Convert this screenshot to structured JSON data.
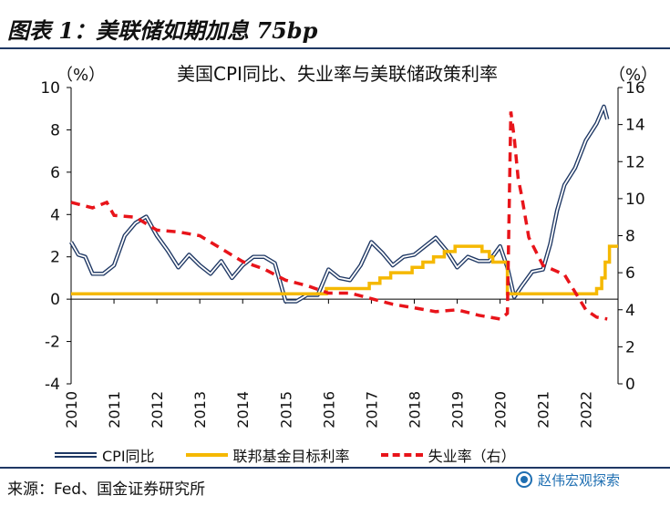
{
  "header": {
    "title": "图表 1：美联储如期加息 75bp"
  },
  "footer": {
    "source": "来源：Fed、国金证券研究所",
    "watermark": "赵伟宏观探索"
  },
  "chart_data": {
    "type": "line",
    "title": "美国CPI同比、失业率与美联储政策利率",
    "left_unit": "（%）",
    "right_unit": "（%）",
    "left_ylim": [
      -4,
      10
    ],
    "left_ticks": [
      "10",
      "8",
      "6",
      "4",
      "2",
      "0",
      "-2",
      "-4"
    ],
    "right_ylim": [
      0,
      16
    ],
    "right_ticks": [
      "16",
      "14",
      "12",
      "10",
      "8",
      "6",
      "4",
      "2",
      "0"
    ],
    "x_ticks": [
      "2010",
      "2011",
      "2012",
      "2013",
      "2014",
      "2015",
      "2016",
      "2017",
      "2018",
      "2019",
      "2020",
      "2021",
      "2022"
    ],
    "xlim": [
      2010.0,
      2022.75
    ],
    "grid": false,
    "legend_position": "bottom",
    "series": [
      {
        "name": "CPI同比",
        "axis": "left",
        "color": "#1f3864",
        "style": "double",
        "x": [
          2010.0,
          2010.17,
          2010.33,
          2010.5,
          2010.75,
          2011.0,
          2011.25,
          2011.5,
          2011.75,
          2012.0,
          2012.25,
          2012.5,
          2012.75,
          2013.0,
          2013.25,
          2013.5,
          2013.75,
          2014.0,
          2014.25,
          2014.5,
          2014.75,
          2015.0,
          2015.25,
          2015.5,
          2015.75,
          2016.0,
          2016.25,
          2016.5,
          2016.75,
          2017.0,
          2017.25,
          2017.5,
          2017.75,
          2018.0,
          2018.25,
          2018.5,
          2018.75,
          2019.0,
          2019.25,
          2019.5,
          2019.75,
          2020.0,
          2020.17,
          2020.33,
          2020.5,
          2020.75,
          2021.0,
          2021.17,
          2021.33,
          2021.5,
          2021.75,
          2022.0,
          2022.25,
          2022.42,
          2022.5
        ],
        "y": [
          2.7,
          2.1,
          2.0,
          1.2,
          1.2,
          1.6,
          3.0,
          3.6,
          3.9,
          3.0,
          2.3,
          1.5,
          2.1,
          1.6,
          1.2,
          1.8,
          1.0,
          1.6,
          2.0,
          2.0,
          1.7,
          -0.1,
          -0.1,
          0.2,
          0.2,
          1.4,
          1.0,
          0.9,
          1.6,
          2.7,
          2.2,
          1.6,
          2.0,
          2.1,
          2.5,
          2.9,
          2.3,
          1.5,
          2.0,
          1.8,
          1.8,
          2.5,
          1.5,
          0.1,
          0.6,
          1.3,
          1.4,
          2.6,
          4.2,
          5.4,
          6.2,
          7.5,
          8.3,
          9.1,
          8.5
        ]
      },
      {
        "name": "联邦基金目标利率",
        "axis": "left",
        "color": "#f5b800",
        "style": "step",
        "x": [
          2010.0,
          2015.95,
          2016.95,
          2017.2,
          2017.45,
          2017.95,
          2018.2,
          2018.45,
          2018.7,
          2018.95,
          2019.58,
          2019.75,
          2019.83,
          2020.17,
          2022.25,
          2022.37,
          2022.45,
          2022.55,
          2022.62,
          2022.75
        ],
        "y": [
          0.25,
          0.5,
          0.75,
          1.0,
          1.25,
          1.5,
          1.75,
          2.0,
          2.25,
          2.5,
          2.25,
          2.0,
          1.75,
          0.25,
          0.5,
          1.0,
          1.75,
          2.5,
          2.5,
          2.5
        ]
      },
      {
        "name": "失业率（右）",
        "axis": "right",
        "color": "#e8141a",
        "style": "dashed",
        "x": [
          2010.0,
          2010.5,
          2010.83,
          2011.0,
          2011.5,
          2012.0,
          2012.5,
          2013.0,
          2013.5,
          2014.0,
          2014.5,
          2015.0,
          2015.5,
          2016.0,
          2016.5,
          2017.0,
          2017.5,
          2018.0,
          2018.5,
          2019.0,
          2019.5,
          2020.0,
          2020.17,
          2020.25,
          2020.33,
          2020.42,
          2020.5,
          2020.67,
          2021.0,
          2021.5,
          2022.0,
          2022.25,
          2022.5
        ],
        "y": [
          9.8,
          9.5,
          9.8,
          9.1,
          9.0,
          8.3,
          8.2,
          8.0,
          7.3,
          6.6,
          6.2,
          5.6,
          5.3,
          4.9,
          4.9,
          4.6,
          4.3,
          4.1,
          3.9,
          4.0,
          3.7,
          3.5,
          3.8,
          14.7,
          13.3,
          11.1,
          10.2,
          7.9,
          6.4,
          5.9,
          4.0,
          3.6,
          3.5
        ]
      }
    ]
  }
}
